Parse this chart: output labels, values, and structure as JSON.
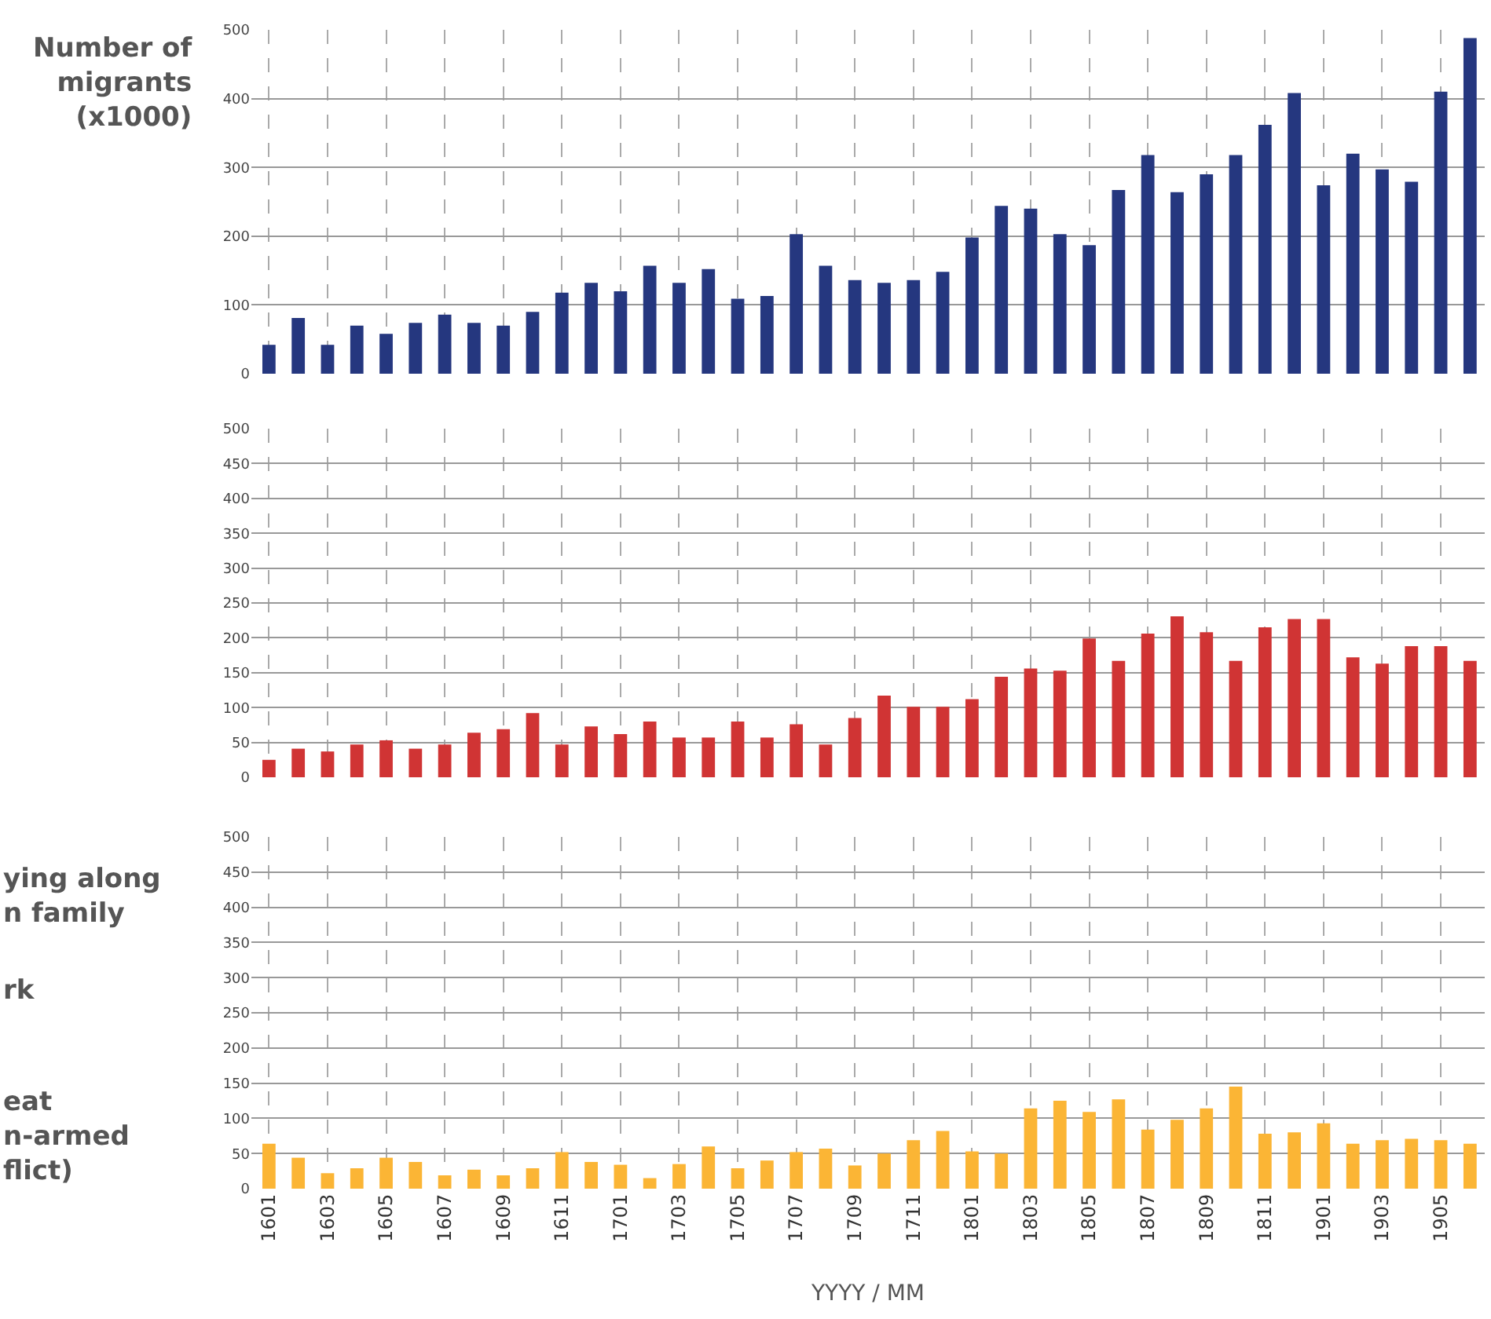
{
  "chart_data": [
    {
      "type": "bar",
      "ylabel": "Number of migrants (x1000)",
      "categories": [
        "1601",
        null,
        "1603",
        null,
        "1605",
        null,
        "1607",
        null,
        "1609",
        null,
        "1611",
        null,
        "1701",
        null,
        "1703",
        null,
        "1705",
        null,
        "1707",
        null,
        "1709",
        null,
        "1711",
        null,
        "1801",
        null,
        "1803",
        null,
        "1805",
        null,
        "1807",
        null,
        "1809",
        null,
        "1811",
        null,
        "1901",
        null,
        "1903",
        null,
        "1905",
        null
      ],
      "values": [
        42,
        81,
        42,
        70,
        58,
        74,
        86,
        74,
        70,
        90,
        118,
        132,
        120,
        157,
        132,
        152,
        109,
        113,
        203,
        157,
        136,
        132,
        136,
        148,
        198,
        244,
        240,
        203,
        187,
        267,
        318,
        264,
        290,
        318,
        362,
        408,
        274,
        320,
        297,
        279,
        410,
        488
      ],
      "color": "#25377f",
      "ylim": [
        0,
        500
      ],
      "yticks": [
        0,
        100,
        200,
        300,
        400,
        500
      ],
      "grid": true,
      "tick_labels": "y"
    },
    {
      "type": "bar",
      "categories": [
        "1601",
        null,
        "1603",
        null,
        "1605",
        null,
        "1607",
        null,
        "1609",
        null,
        "1611",
        null,
        "1701",
        null,
        "1703",
        null,
        "1705",
        null,
        "1707",
        null,
        "1709",
        null,
        "1711",
        null,
        "1801",
        null,
        "1803",
        null,
        "1805",
        null,
        "1807",
        null,
        "1809",
        null,
        "1811",
        null,
        "1901",
        null,
        "1903",
        null,
        "1905",
        null
      ],
      "values": [
        25,
        41,
        37,
        47,
        53,
        41,
        47,
        64,
        69,
        92,
        47,
        73,
        62,
        80,
        57,
        57,
        80,
        57,
        76,
        47,
        85,
        117,
        101,
        101,
        112,
        144,
        156,
        153,
        199,
        167,
        206,
        231,
        208,
        167,
        215,
        227,
        227,
        172,
        163,
        188,
        188,
        167
      ],
      "color": "#d03434",
      "ylim": [
        0,
        500
      ],
      "yticks": [
        0,
        50,
        100,
        150,
        200,
        250,
        300,
        350,
        400,
        450,
        500
      ],
      "grid": true,
      "tick_labels": "y"
    },
    {
      "type": "bar",
      "xlabel": "YYYY / MM",
      "annotations": [
        "ying along\nn family",
        "rk",
        "eat\nn-armed\nflict)"
      ],
      "categories": [
        "1601",
        null,
        "1603",
        null,
        "1605",
        null,
        "1607",
        null,
        "1609",
        null,
        "1611",
        null,
        "1701",
        null,
        "1703",
        null,
        "1705",
        null,
        "1707",
        null,
        "1709",
        null,
        "1711",
        null,
        "1801",
        null,
        "1803",
        null,
        "1805",
        null,
        "1807",
        null,
        "1809",
        null,
        "1811",
        null,
        "1901",
        null,
        "1903",
        null,
        "1905",
        null
      ],
      "values": [
        64,
        44,
        22,
        29,
        44,
        38,
        19,
        27,
        19,
        29,
        52,
        38,
        34,
        15,
        35,
        60,
        29,
        40,
        52,
        57,
        33,
        50,
        69,
        82,
        53,
        50,
        114,
        125,
        109,
        127,
        84,
        98,
        114,
        145,
        78,
        80,
        93,
        64,
        69,
        71,
        69,
        64
      ],
      "color": "#fbb535",
      "ylim": [
        0,
        500
      ],
      "yticks": [
        0,
        50,
        100,
        150,
        200,
        250,
        300,
        350,
        400,
        450,
        500
      ],
      "grid": true
    }
  ]
}
